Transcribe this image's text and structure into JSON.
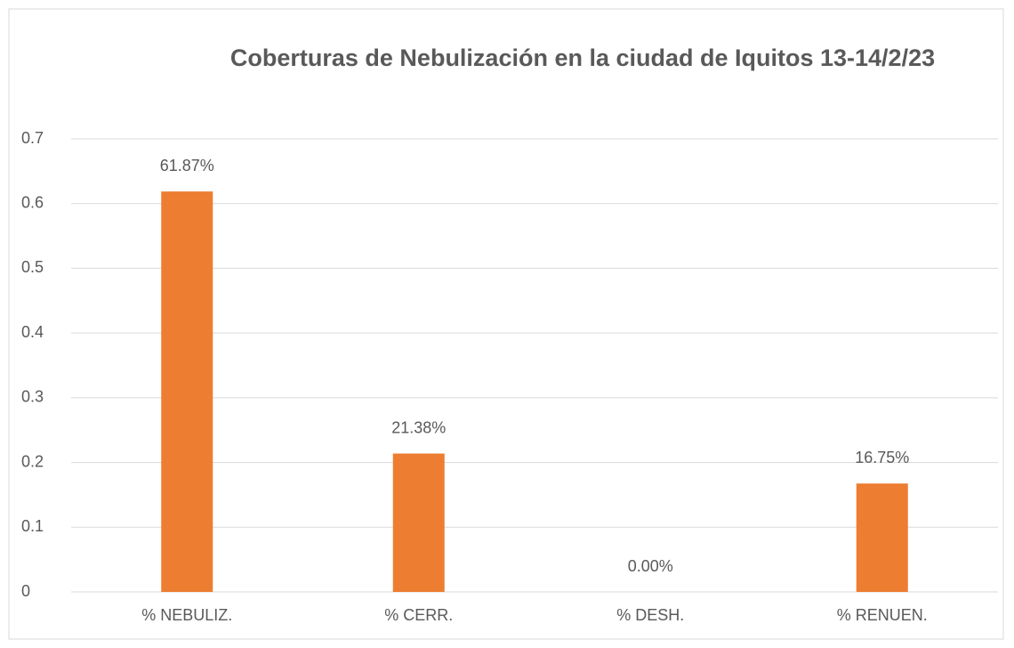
{
  "chart_data": {
    "type": "bar",
    "title": "Coberturas de Nebulización en la ciudad de Iquitos 13-14/2/23",
    "categories": [
      "% NEBULIZ.",
      "% CERR.",
      "% DESH.",
      "% RENUEN."
    ],
    "values": [
      0.6187,
      0.2138,
      0,
      0.1675
    ],
    "value_labels": [
      "61.87%",
      "21.38%",
      "0.00%",
      "16.75%"
    ],
    "color": "#ed7d31",
    "ylim": [
      0,
      0.7
    ],
    "yticks": [
      0,
      0.1,
      0.2,
      0.3,
      0.4,
      0.5,
      0.6,
      0.7
    ],
    "grid": true
  }
}
